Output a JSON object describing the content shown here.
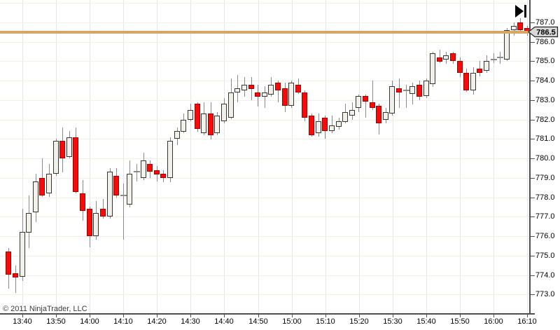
{
  "chart": {
    "copyright": "© 2011 NinjaTrader, LLC"
  },
  "price_axis": {
    "labels": [
      "787.0",
      "786.0",
      "785.0",
      "784.0",
      "783.0",
      "782.0",
      "781.0",
      "780.0",
      "779.0",
      "778.0",
      "777.0",
      "776.0",
      "775.0",
      "774.0",
      "773.0"
    ],
    "current_price_label": "786.5"
  },
  "time_axis": {
    "labels": [
      "13:40",
      "13:50",
      "14:00",
      "14:10",
      "14:20",
      "14:30",
      "14:40",
      "14:50",
      "15:00",
      "15:10",
      "15:20",
      "15:30",
      "15:40",
      "15:50",
      "16:00",
      "16:10"
    ]
  },
  "icons": {
    "skip_to_end": "play-triangle-with-bar"
  },
  "colors": {
    "up_fill": "#f2f0ea",
    "up_border": "#37352f",
    "down_fill": "#f60a0a",
    "down_border": "#a00000",
    "wick": "#8a8a8a",
    "horizontal_line": "#d7a566",
    "axis_line": "#4f4f4f",
    "grid_vertical": "#e6e6e6",
    "grid_horizontal": "#f1efe7",
    "tag_fill": "#d8d8d8",
    "tag_border": "#222222"
  },
  "chart_data": {
    "type": "candlestick",
    "title": "",
    "interval": "2-minute",
    "start_time": "13:36",
    "end_time": "16:10",
    "ylim": [
      772.0,
      788.15
    ],
    "grid": true,
    "horizontal_line_price": 786.5,
    "candles_format": [
      "open",
      "high",
      "low",
      "close"
    ],
    "candles": [
      [
        775.2,
        775.4,
        773.3,
        774.0
      ],
      [
        774.1,
        774.5,
        773.1,
        773.9
      ],
      [
        773.9,
        777.4,
        773.7,
        776.2
      ],
      [
        776.2,
        778.1,
        775.4,
        777.2
      ],
      [
        777.2,
        779.2,
        776.7,
        778.8
      ],
      [
        779.0,
        780.0,
        778.0,
        778.1
      ],
      [
        778.2,
        779.7,
        778.0,
        779.2
      ],
      [
        779.2,
        781.0,
        779.1,
        780.9
      ],
      [
        780.9,
        781.6,
        779.3,
        780.0
      ],
      [
        780.1,
        781.4,
        780.0,
        781.1
      ],
      [
        781.1,
        781.6,
        778.2,
        778.3
      ],
      [
        778.2,
        778.9,
        776.8,
        777.3
      ],
      [
        777.4,
        777.5,
        775.4,
        776.0
      ],
      [
        776.0,
        777.8,
        775.8,
        777.2
      ],
      [
        777.4,
        777.9,
        776.9,
        777.0
      ],
      [
        777.0,
        779.5,
        776.9,
        779.3
      ],
      [
        779.1,
        779.5,
        778.0,
        778.1
      ],
      [
        778.1,
        778.7,
        775.8,
        778.1
      ],
      [
        777.6,
        779.9,
        777.5,
        779.2
      ],
      [
        779.3,
        779.7,
        778.8,
        779.3
      ],
      [
        779.0,
        780.3,
        778.9,
        779.9
      ],
      [
        779.7,
        779.9,
        779.0,
        779.3
      ],
      [
        779.4,
        779.6,
        778.8,
        779.2
      ],
      [
        779.2,
        779.4,
        778.8,
        779.0
      ],
      [
        779.0,
        781.1,
        778.8,
        780.9
      ],
      [
        781.0,
        781.6,
        780.7,
        781.4
      ],
      [
        781.4,
        782.3,
        781.3,
        782.0
      ],
      [
        782.0,
        782.8,
        781.9,
        782.5
      ],
      [
        782.8,
        782.9,
        781.4,
        781.5
      ],
      [
        781.3,
        782.9,
        781.2,
        782.3
      ],
      [
        782.3,
        782.9,
        781.0,
        781.2
      ],
      [
        781.3,
        782.4,
        781.2,
        782.2
      ],
      [
        781.9,
        783.1,
        781.8,
        782.8
      ],
      [
        782.1,
        784.1,
        782.0,
        783.4
      ],
      [
        783.4,
        784.3,
        782.9,
        783.6
      ],
      [
        783.5,
        784.2,
        783.2,
        783.8
      ],
      [
        783.8,
        784.2,
        783.0,
        783.6
      ],
      [
        783.4,
        783.8,
        782.7,
        783.2
      ],
      [
        783.2,
        783.7,
        782.6,
        783.4
      ],
      [
        783.3,
        784.2,
        783.2,
        783.8
      ],
      [
        783.9,
        784.0,
        782.9,
        783.5
      ],
      [
        783.6,
        783.9,
        782.4,
        782.7
      ],
      [
        782.7,
        784.0,
        782.6,
        783.9
      ],
      [
        783.8,
        784.1,
        783.3,
        783.4
      ],
      [
        783.4,
        783.5,
        781.9,
        782.1
      ],
      [
        782.2,
        782.3,
        781.1,
        781.2
      ],
      [
        781.3,
        782.3,
        781.1,
        781.9
      ],
      [
        782.1,
        782.2,
        781.0,
        781.4
      ],
      [
        781.4,
        782.2,
        781.3,
        781.7
      ],
      [
        781.6,
        782.1,
        781.5,
        781.9
      ],
      [
        781.9,
        782.8,
        781.8,
        782.4
      ],
      [
        782.2,
        782.9,
        782.0,
        782.5
      ],
      [
        782.6,
        783.3,
        782.4,
        783.2
      ],
      [
        783.2,
        783.3,
        782.1,
        782.9
      ],
      [
        782.9,
        784.0,
        782.5,
        782.6
      ],
      [
        782.7,
        782.8,
        781.2,
        781.8
      ],
      [
        782.0,
        782.6,
        781.8,
        782.4
      ],
      [
        782.3,
        784.0,
        782.2,
        783.7
      ],
      [
        783.6,
        784.1,
        782.6,
        783.4
      ],
      [
        783.5,
        783.8,
        782.6,
        783.5
      ],
      [
        783.3,
        783.9,
        782.8,
        783.7
      ],
      [
        783.8,
        784.0,
        783.0,
        783.2
      ],
      [
        783.2,
        784.1,
        783.1,
        784.0
      ],
      [
        783.8,
        785.5,
        783.7,
        785.4
      ],
      [
        785.2,
        785.6,
        784.9,
        785.0
      ],
      [
        785.1,
        785.5,
        784.9,
        785.3
      ],
      [
        785.4,
        785.5,
        784.9,
        785.0
      ],
      [
        785.0,
        785.2,
        784.2,
        784.4
      ],
      [
        784.4,
        784.6,
        783.4,
        783.5
      ],
      [
        783.5,
        784.7,
        783.3,
        784.4
      ],
      [
        784.6,
        785.0,
        784.2,
        784.4
      ],
      [
        784.5,
        785.3,
        784.4,
        785.0
      ],
      [
        785.1,
        785.4,
        784.9,
        785.1
      ],
      [
        785.2,
        785.5,
        784.9,
        785.2
      ],
      [
        785.1,
        786.7,
        785.0,
        786.6
      ],
      [
        786.6,
        787.0,
        786.3,
        786.8
      ],
      [
        787.0,
        787.2,
        786.4,
        786.6
      ],
      [
        786.7,
        786.8,
        786.3,
        786.5
      ]
    ]
  }
}
